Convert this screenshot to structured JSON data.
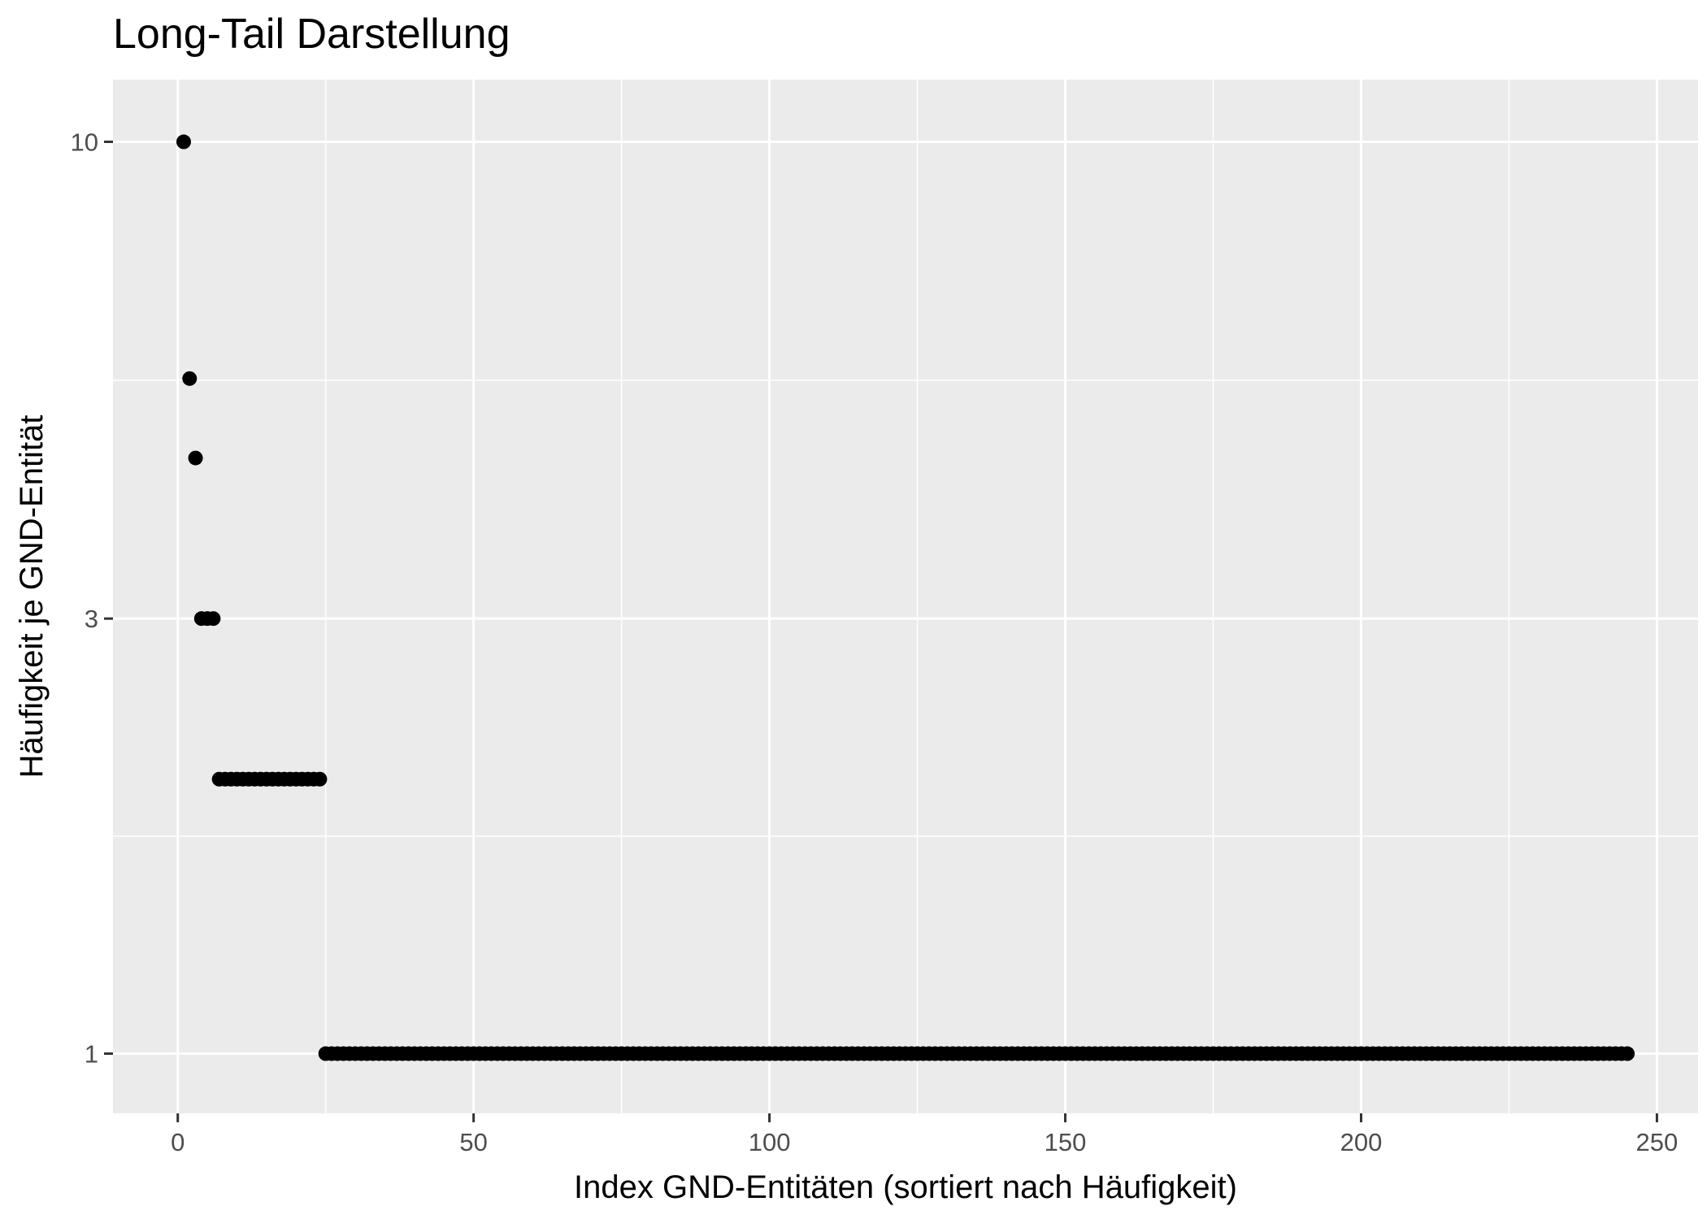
{
  "chart_data": {
    "type": "scatter",
    "title": "Long-Tail Darstellung",
    "xlabel": "Index GND-Entitäten (sortiert nach Häufigkeit)",
    "ylabel": "Häufigkeit je GND-Entität",
    "x_scale": "linear",
    "y_scale": "log10",
    "xlim": [
      -10.95,
      256.95
    ],
    "ylim": [
      0.86,
      11.7
    ],
    "x_ticks": [
      0,
      50,
      100,
      150,
      200,
      250
    ],
    "x_tick_labels": [
      "0",
      "50",
      "100",
      "150",
      "200",
      "250"
    ],
    "y_ticks": [
      1,
      3,
      10
    ],
    "y_tick_labels": [
      "1",
      "3",
      "10"
    ],
    "grid": true,
    "legend": "none",
    "colors": {
      "panel_background": "#ebebeb",
      "grid": "#ffffff",
      "point": "#000000",
      "tick": "#333333"
    },
    "series": [
      {
        "runs": [
          {
            "from": 1,
            "to": 1,
            "y": 10
          },
          {
            "from": 2,
            "to": 2,
            "y": 5.5
          },
          {
            "from": 3,
            "to": 3,
            "y": 4.5
          },
          {
            "from": 4,
            "to": 6,
            "y": 3
          },
          {
            "from": 7,
            "to": 24,
            "y": 2
          },
          {
            "from": 25,
            "to": 245,
            "y": 1
          }
        ]
      }
    ]
  }
}
